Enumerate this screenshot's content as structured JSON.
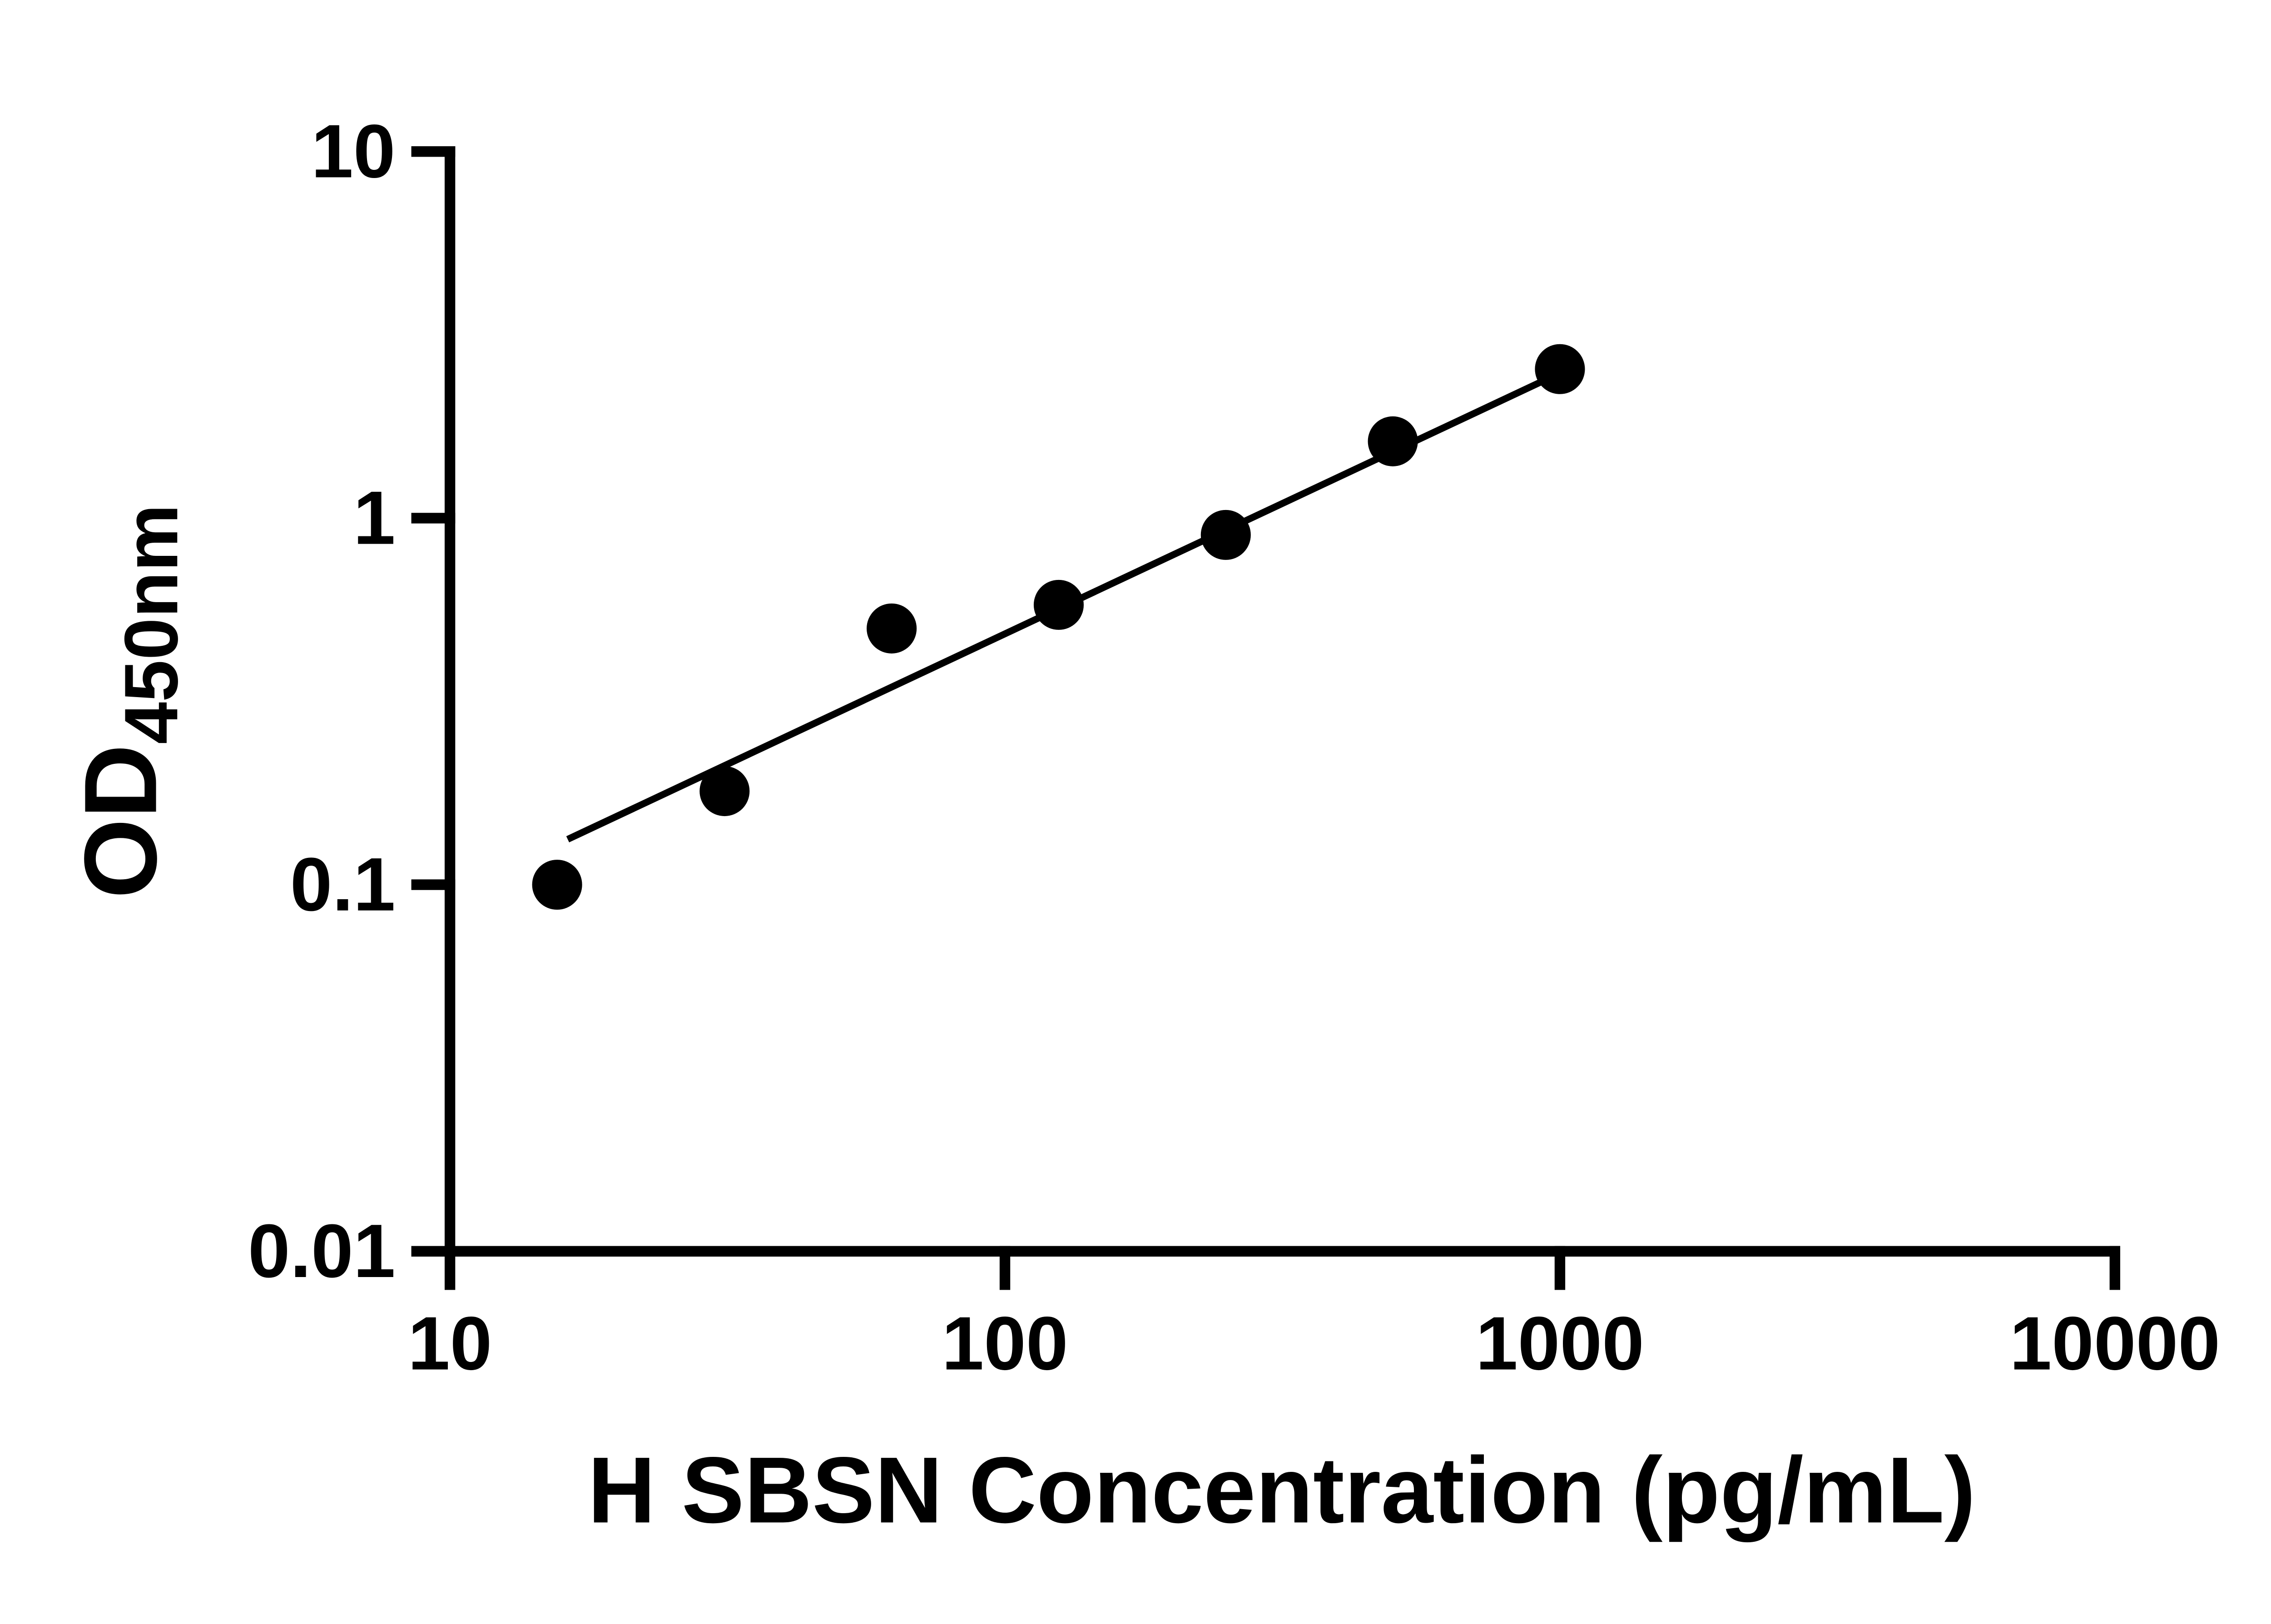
{
  "chart_data": {
    "type": "scatter",
    "title": "",
    "xlabel": "H SBSN Concentration (pg/mL)",
    "ylabel_main": "OD",
    "ylabel_sub": "450nm",
    "x_scale": "log",
    "y_scale": "log",
    "xlim": [
      10,
      10000
    ],
    "ylim": [
      0.01,
      10
    ],
    "x_ticks": [
      "10",
      "100",
      "1000",
      "10000"
    ],
    "y_ticks": [
      "10",
      "1",
      "0.1",
      "0.01"
    ],
    "grid": "off",
    "legend": "none",
    "points": {
      "x": [
        15.6,
        31.25,
        62.5,
        125,
        250,
        500,
        1000
      ],
      "y": [
        0.1,
        0.18,
        0.5,
        0.58,
        0.9,
        1.62,
        2.55
      ]
    },
    "trend_line": {
      "x": [
        16.3,
        990
      ],
      "y": [
        0.133,
        2.47
      ]
    },
    "marker_color": "#000000",
    "line_color": "#000000",
    "background_color": "#ffffff"
  }
}
